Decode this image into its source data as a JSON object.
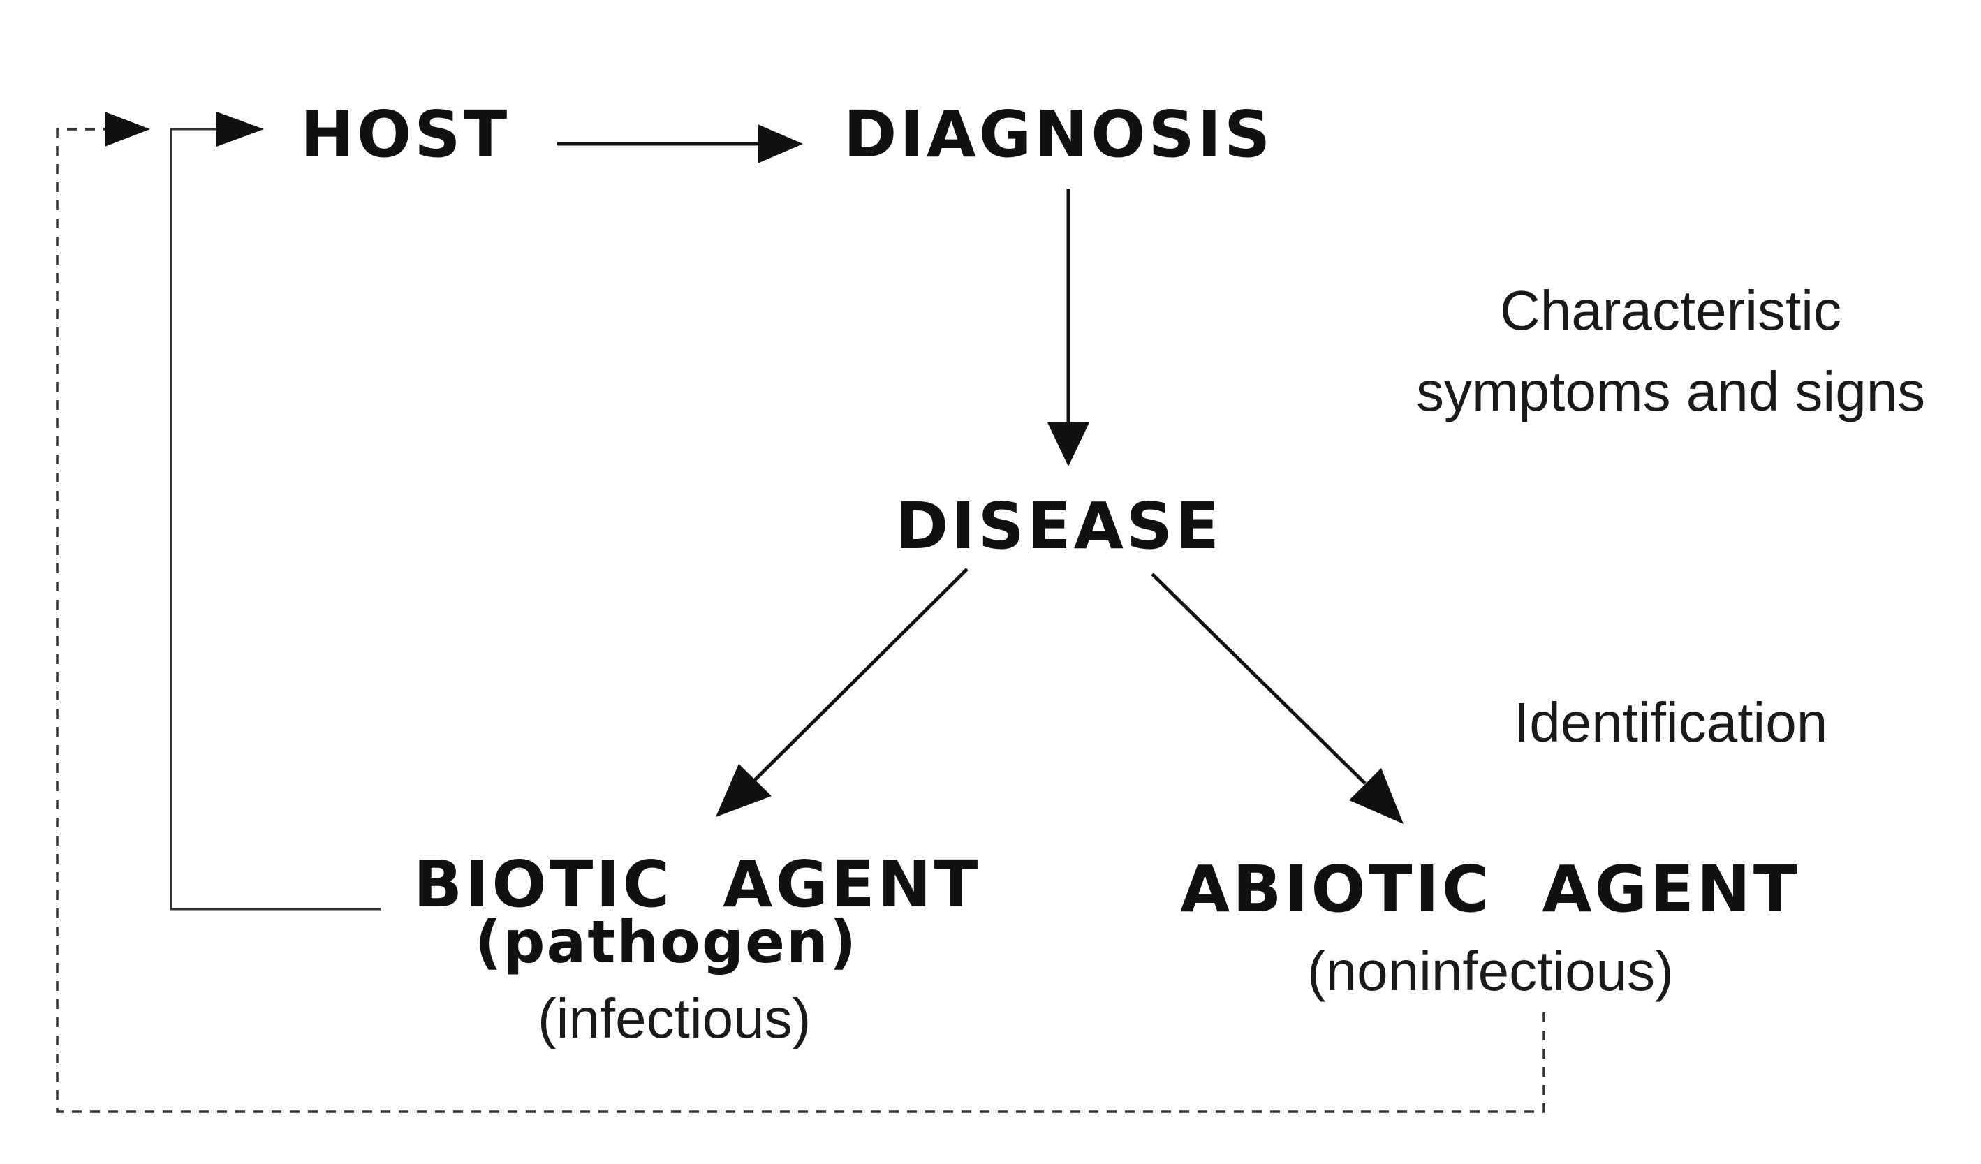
{
  "nodes": {
    "host": "HOST",
    "diagnosis": "DIAGNOSIS",
    "disease": "DISEASE",
    "biotic": {
      "title": "BIOTIC  AGENT",
      "subtitle": "(pathogen)",
      "note": "(infectious)"
    },
    "abiotic": {
      "title": "ABIOTIC  AGENT",
      "note": "(noninfectious)"
    }
  },
  "annotations": {
    "symptoms_line1": "Characteristic",
    "symptoms_line2": "symptoms and signs",
    "identification": "Identification"
  },
  "colors": {
    "ink": "#111111",
    "background": "#ffffff"
  }
}
